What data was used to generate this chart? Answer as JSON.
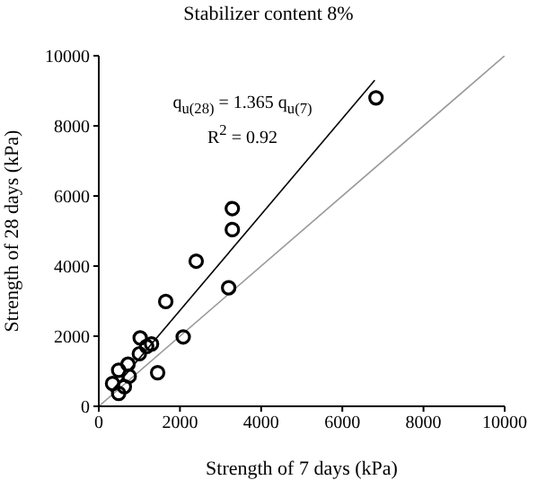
{
  "chart_data": {
    "type": "scatter",
    "title": "Stabilizer content 8%",
    "xlabel": "Strength of 7 days (kPa)",
    "ylabel": "Strength of 28 days (kPa)",
    "annotations": [
      "q$_{u(28)}$ = 1.365 q$_{u(7)}$",
      "R$^{2}$ = 0.92"
    ],
    "xlim": [
      0,
      10000
    ],
    "ylim": [
      0,
      10000
    ],
    "xticks": [
      0,
      2000,
      4000,
      6000,
      8000,
      10000
    ],
    "yticks": [
      0,
      2000,
      4000,
      6000,
      8000,
      10000
    ],
    "grid": false,
    "series": [
      {
        "marker": "circle",
        "color": "#000000",
        "x": [
          6830,
          3290,
          3290,
          2400,
          3200,
          1650,
          2080,
          1020,
          1300,
          1180,
          1000,
          1450,
          720,
          490,
          750,
          630,
          340,
          490
        ],
        "values": [
          8800,
          5640,
          5040,
          4140,
          3380,
          2990,
          1980,
          1950,
          1780,
          1710,
          1500,
          960,
          1200,
          1030,
          860,
          560,
          650,
          370
        ]
      },
      {
        "type": "line",
        "marker": "none",
        "color": "#000000",
        "x": [
          300,
          6800
        ],
        "values": [
          410,
          9300
        ]
      },
      {
        "type": "line",
        "marker": "none",
        "color": "#999999",
        "x": [
          0,
          10000
        ],
        "values": [
          0,
          10000
        ]
      }
    ]
  }
}
